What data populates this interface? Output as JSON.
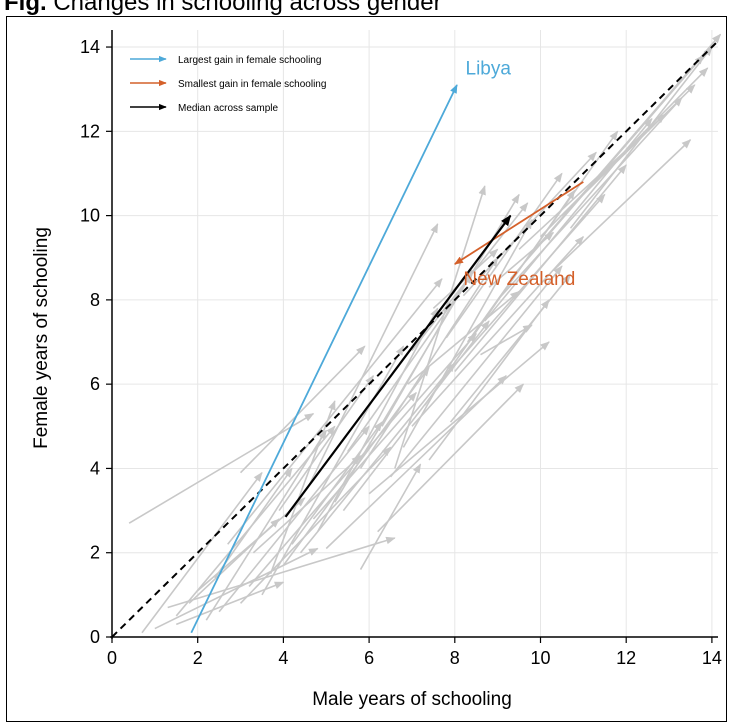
{
  "header": {
    "caption_prefix": "Fig.",
    "caption_text": "Changes in schooling across gender"
  },
  "chart_data": {
    "type": "scatter",
    "subtype": "arrow-plot",
    "xlabel": "Male years of schooling",
    "ylabel": "Female years of schooling",
    "xlim": [
      0,
      14.2
    ],
    "ylim": [
      0,
      14.3
    ],
    "xticks": [
      0,
      2,
      4,
      6,
      8,
      10,
      12,
      14
    ],
    "yticks": [
      0,
      2,
      4,
      6,
      8,
      10,
      12,
      14
    ],
    "grid": true,
    "legend_position": "top-left",
    "legend": [
      {
        "label": "Largest gain in female schooling",
        "color": "#4da9d9"
      },
      {
        "label": "Smallest gain in female schooling",
        "color": "#d4602a"
      },
      {
        "label": "Median across sample",
        "color": "#000000"
      }
    ],
    "highlighted": [
      {
        "name": "Libya",
        "color": "#4da9d9",
        "x0": 1.85,
        "y0": 0.1,
        "x1": 8.05,
        "y1": 13.1
      },
      {
        "name": "New Zealand",
        "color": "#d4602a",
        "x0": 11.0,
        "y0": 10.8,
        "x1": 8.0,
        "y1": 8.85
      },
      {
        "name": "Median",
        "color": "#000000",
        "x0": 4.05,
        "y0": 2.85,
        "x1": 9.3,
        "y1": 10.0
      }
    ],
    "reference_line": {
      "style": "dashed",
      "color": "#000000",
      "from": [
        0,
        0
      ],
      "to": [
        14.1,
        14.1
      ]
    },
    "background_arrows": [
      [
        0.4,
        2.7,
        4.7,
        5.3
      ],
      [
        0.7,
        0.1,
        3.5,
        3.9
      ],
      [
        1.0,
        0.2,
        4.8,
        2.1
      ],
      [
        1.3,
        0.7,
        6.6,
        2.35
      ],
      [
        1.5,
        0.5,
        5.2,
        5.0
      ],
      [
        2.2,
        0.4,
        5.0,
        4.9
      ],
      [
        2.5,
        0.6,
        6.0,
        5.0
      ],
      [
        3.0,
        0.8,
        6.5,
        4.5
      ],
      [
        3.2,
        1.2,
        7.1,
        5.8
      ],
      [
        3.5,
        1.0,
        6.8,
        6.9
      ],
      [
        4.0,
        1.7,
        7.4,
        6.4
      ],
      [
        4.4,
        2.0,
        8.0,
        6.5
      ],
      [
        4.7,
        2.8,
        8.5,
        7.2
      ],
      [
        5.0,
        2.1,
        9.2,
        6.2
      ],
      [
        5.4,
        3.0,
        8.8,
        7.5
      ],
      [
        5.8,
        1.6,
        7.2,
        4.1
      ],
      [
        6.0,
        3.4,
        10.2,
        7.0
      ],
      [
        6.2,
        2.5,
        9.6,
        6.0
      ],
      [
        5.8,
        4.0,
        9.0,
        9.0
      ],
      [
        6.5,
        3.8,
        10.5,
        8.8
      ],
      [
        6.8,
        4.5,
        9.8,
        9.9
      ],
      [
        7.0,
        5.0,
        11.0,
        9.5
      ],
      [
        7.3,
        5.5,
        10.8,
        10.6
      ],
      [
        7.6,
        6.0,
        11.5,
        10.5
      ],
      [
        8.0,
        6.3,
        12.0,
        11.2
      ],
      [
        8.3,
        7.0,
        11.8,
        12.0
      ],
      [
        8.7,
        7.5,
        12.6,
        12.3
      ],
      [
        9.0,
        8.0,
        13.3,
        12.8
      ],
      [
        9.3,
        8.5,
        13.8,
        13.8
      ],
      [
        9.7,
        9.0,
        14.2,
        14.3
      ],
      [
        10.0,
        9.5,
        13.9,
        13.5
      ],
      [
        10.3,
        8.7,
        13.5,
        11.8
      ],
      [
        10.7,
        9.7,
        14.0,
        14.0
      ],
      [
        4.6,
        3.6,
        7.6,
        9.8
      ],
      [
        3.0,
        3.9,
        5.9,
        6.9
      ],
      [
        2.7,
        2.2,
        7.7,
        8.5
      ],
      [
        3.7,
        1.5,
        5.2,
        5.6
      ],
      [
        4.8,
        2.5,
        7.6,
        7.8
      ],
      [
        5.2,
        3.2,
        9.5,
        10.5
      ],
      [
        6.6,
        4.0,
        8.7,
        10.7
      ],
      [
        5.5,
        4.4,
        8.4,
        8.6
      ],
      [
        7.4,
        4.2,
        10.2,
        8.0
      ],
      [
        7.9,
        5.1,
        10.7,
        8.6
      ],
      [
        8.6,
        6.7,
        9.8,
        7.4
      ],
      [
        2.0,
        1.1,
        4.5,
        3.3
      ],
      [
        1.8,
        0.8,
        3.9,
        2.8
      ],
      [
        3.3,
        2.0,
        5.8,
        4.3
      ],
      [
        2.4,
        1.4,
        4.2,
        4.0
      ],
      [
        4.2,
        2.2,
        6.3,
        5.1
      ],
      [
        6.3,
        5.0,
        8.4,
        8.7
      ],
      [
        7.0,
        6.8,
        9.7,
        10.3
      ],
      [
        7.8,
        7.1,
        10.5,
        11.0
      ],
      [
        8.2,
        8.1,
        11.3,
        11.5
      ],
      [
        9.5,
        9.2,
        12.9,
        12.4
      ],
      [
        10.5,
        10.0,
        13.6,
        13.1
      ],
      [
        6.9,
        6.0,
        9.5,
        8.2
      ],
      [
        7.5,
        7.8,
        9.0,
        9.2
      ],
      [
        8.8,
        8.3,
        10.3,
        9.6
      ],
      [
        1.5,
        0.3,
        4.0,
        1.3
      ],
      [
        3.9,
        3.0,
        6.1,
        6.2
      ]
    ]
  }
}
